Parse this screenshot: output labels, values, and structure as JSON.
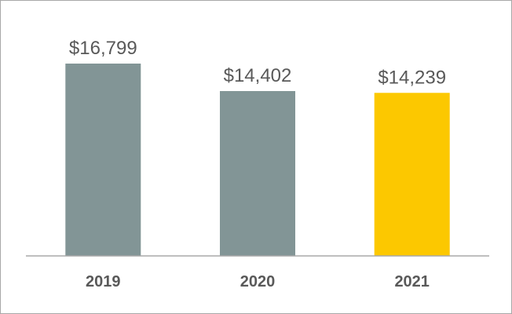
{
  "chart_data": {
    "type": "bar",
    "categories": [
      "2019",
      "2020",
      "2021"
    ],
    "values": [
      16799,
      14402,
      14239
    ],
    "value_labels": [
      "$16,799",
      "$14,402",
      "$14,239"
    ],
    "title": "",
    "xlabel": "",
    "ylabel": "",
    "ylim": [
      0,
      16799
    ],
    "grid": false,
    "legend": "none",
    "colors": [
      "#829596",
      "#829596",
      "#fcc800"
    ],
    "axis_color": "#a8a8a8",
    "label_color": "#595959"
  }
}
